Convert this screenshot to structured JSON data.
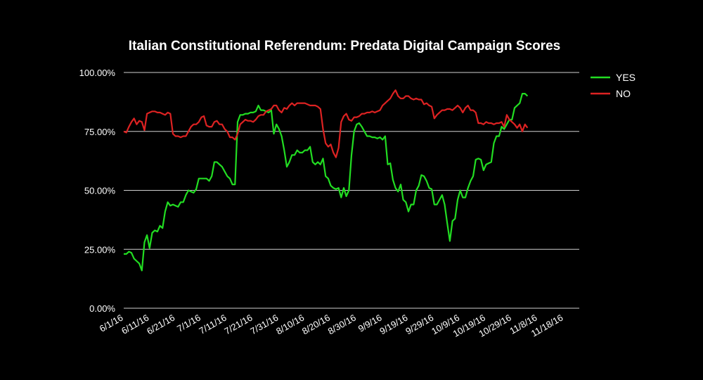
{
  "chart_data": {
    "type": "line",
    "title": "Italian Constitutional Referendum: Predata Digital Campaign Scores",
    "xlabel": "",
    "ylabel": "",
    "ylim": [
      0,
      100
    ],
    "y_ticks": [
      "0.00%",
      "25.00%",
      "50.00%",
      "75.00%",
      "100.00%"
    ],
    "y_tick_values": [
      0,
      25,
      50,
      75,
      100
    ],
    "grid": true,
    "legend_position": "right",
    "x_tick_labels": [
      "6/1/16",
      "6/11/16",
      "6/21/16",
      "7/1/16",
      "7/11/16",
      "7/21/16",
      "7/31/16",
      "8/10/16",
      "8/20/16",
      "8/30/16",
      "9/9/16",
      "9/19/16",
      "9/29/16",
      "10/9/16",
      "10/19/16",
      "10/29/16",
      "11/8/16",
      "11/18/16"
    ],
    "x_tick_days": [
      0,
      10,
      20,
      30,
      40,
      50,
      60,
      70,
      80,
      90,
      100,
      110,
      120,
      130,
      140,
      150,
      160,
      170
    ],
    "x_day_range": [
      0,
      176
    ],
    "series": [
      {
        "name": "YES",
        "color": "#22dd22",
        "points": [
          [
            0,
            23
          ],
          [
            1,
            23
          ],
          [
            2,
            24
          ],
          [
            3,
            23.5
          ],
          [
            4,
            21
          ],
          [
            5,
            20
          ],
          [
            6,
            19
          ],
          [
            7,
            16
          ],
          [
            8,
            28
          ],
          [
            9,
            31
          ],
          [
            10,
            25.5
          ],
          [
            11,
            32
          ],
          [
            12,
            33
          ],
          [
            13,
            32.5
          ],
          [
            14,
            35
          ],
          [
            15,
            34
          ],
          [
            16,
            41
          ],
          [
            17,
            45
          ],
          [
            18,
            43.5
          ],
          [
            19,
            44
          ],
          [
            20,
            43.5
          ],
          [
            21,
            43
          ],
          [
            22,
            45
          ],
          [
            23,
            45
          ],
          [
            24,
            48
          ],
          [
            25,
            50
          ],
          [
            26,
            49.5
          ],
          [
            27,
            49
          ],
          [
            28,
            50.5
          ],
          [
            29,
            55
          ],
          [
            30,
            55
          ],
          [
            31,
            55
          ],
          [
            32,
            55
          ],
          [
            33,
            54
          ],
          [
            34,
            56
          ],
          [
            35,
            62
          ],
          [
            36,
            62
          ],
          [
            37,
            61
          ],
          [
            38,
            60
          ],
          [
            39,
            58
          ],
          [
            40,
            56
          ],
          [
            41,
            55
          ],
          [
            42,
            52.5
          ],
          [
            43,
            52.5
          ],
          [
            44,
            79
          ],
          [
            45,
            82
          ],
          [
            46,
            82
          ],
          [
            47,
            82.5
          ],
          [
            48,
            82.5
          ],
          [
            49,
            83
          ],
          [
            50,
            83
          ],
          [
            51,
            83.5
          ],
          [
            52,
            86
          ],
          [
            53,
            84
          ],
          [
            54,
            84
          ],
          [
            55,
            83.5
          ],
          [
            56,
            83
          ],
          [
            57,
            84
          ],
          [
            58,
            74
          ],
          [
            59,
            78
          ],
          [
            60,
            76
          ],
          [
            61,
            73
          ],
          [
            62,
            67
          ],
          [
            63,
            60
          ],
          [
            64,
            62
          ],
          [
            65,
            65
          ],
          [
            66,
            65
          ],
          [
            67,
            67
          ],
          [
            68,
            66
          ],
          [
            69,
            66
          ],
          [
            70,
            67
          ],
          [
            71,
            67
          ],
          [
            72,
            68.5
          ],
          [
            73,
            62
          ],
          [
            74,
            61
          ],
          [
            75,
            62
          ],
          [
            76,
            61
          ],
          [
            77,
            63.5
          ],
          [
            78,
            56
          ],
          [
            79,
            55
          ],
          [
            80,
            52
          ],
          [
            81,
            51
          ],
          [
            82,
            50.5
          ],
          [
            83,
            51
          ],
          [
            84,
            47
          ],
          [
            85,
            51
          ],
          [
            86,
            47.5
          ],
          [
            87,
            50
          ],
          [
            88,
            65
          ],
          [
            89,
            75
          ],
          [
            90,
            78
          ],
          [
            91,
            78.5
          ],
          [
            92,
            77
          ],
          [
            93,
            75
          ],
          [
            94,
            73
          ],
          [
            95,
            73
          ],
          [
            96,
            72.5
          ],
          [
            97,
            72.5
          ],
          [
            98,
            72
          ],
          [
            99,
            72.5
          ],
          [
            100,
            71.5
          ],
          [
            101,
            73
          ],
          [
            102,
            61
          ],
          [
            103,
            61.5
          ],
          [
            104,
            54.5
          ],
          [
            105,
            51
          ],
          [
            106,
            49.5
          ],
          [
            107,
            52.5
          ],
          [
            108,
            46
          ],
          [
            109,
            45
          ],
          [
            110,
            41
          ],
          [
            111,
            44
          ],
          [
            112,
            44
          ],
          [
            113,
            50
          ],
          [
            114,
            52
          ],
          [
            115,
            56.5
          ],
          [
            116,
            56
          ],
          [
            117,
            54
          ],
          [
            118,
            51
          ],
          [
            119,
            50.5
          ],
          [
            120,
            44
          ],
          [
            121,
            44
          ],
          [
            122,
            46
          ],
          [
            123,
            48
          ],
          [
            124,
            44
          ],
          [
            125,
            36
          ],
          [
            126,
            28.5
          ],
          [
            127,
            37
          ],
          [
            128,
            38
          ],
          [
            129,
            46
          ],
          [
            130,
            50
          ],
          [
            131,
            47
          ],
          [
            132,
            47
          ],
          [
            133,
            51
          ],
          [
            134,
            54
          ],
          [
            135,
            56
          ],
          [
            136,
            63
          ],
          [
            137,
            63.5
          ],
          [
            138,
            63
          ],
          [
            139,
            58.5
          ],
          [
            140,
            61
          ],
          [
            141,
            61.5
          ],
          [
            142,
            62
          ],
          [
            143,
            70
          ],
          [
            144,
            73
          ],
          [
            145,
            73
          ],
          [
            146,
            77
          ],
          [
            147,
            76
          ],
          [
            148,
            78
          ],
          [
            149,
            80
          ],
          [
            150,
            80
          ],
          [
            151,
            85
          ],
          [
            152,
            86
          ],
          [
            153,
            87
          ],
          [
            154,
            91
          ],
          [
            155,
            91
          ],
          [
            156,
            90
          ]
        ]
      },
      {
        "name": "NO",
        "color": "#dd2222",
        "points": [
          [
            0,
            75
          ],
          [
            1,
            74.5
          ],
          [
            2,
            77
          ],
          [
            3,
            79
          ],
          [
            4,
            80.5
          ],
          [
            5,
            78
          ],
          [
            6,
            79.5
          ],
          [
            7,
            79
          ],
          [
            8,
            75.5
          ],
          [
            9,
            82.5
          ],
          [
            10,
            83
          ],
          [
            11,
            83.5
          ],
          [
            12,
            83.5
          ],
          [
            13,
            83
          ],
          [
            14,
            83
          ],
          [
            15,
            82.5
          ],
          [
            16,
            82
          ],
          [
            17,
            83
          ],
          [
            18,
            82.5
          ],
          [
            19,
            74
          ],
          [
            20,
            73
          ],
          [
            21,
            73
          ],
          [
            22,
            72.5
          ],
          [
            23,
            73
          ],
          [
            24,
            73
          ],
          [
            25,
            75
          ],
          [
            26,
            77
          ],
          [
            27,
            78
          ],
          [
            28,
            78
          ],
          [
            29,
            79
          ],
          [
            30,
            81
          ],
          [
            31,
            81.5
          ],
          [
            32,
            77.5
          ],
          [
            33,
            77
          ],
          [
            34,
            77
          ],
          [
            35,
            79
          ],
          [
            36,
            79.5
          ],
          [
            37,
            78
          ],
          [
            38,
            78
          ],
          [
            39,
            76
          ],
          [
            40,
            75
          ],
          [
            41,
            72.5
          ],
          [
            42,
            72.5
          ],
          [
            43,
            71.5
          ],
          [
            44,
            74
          ],
          [
            45,
            78
          ],
          [
            46,
            79
          ],
          [
            47,
            80
          ],
          [
            48,
            79.5
          ],
          [
            49,
            79.5
          ],
          [
            50,
            79
          ],
          [
            51,
            80
          ],
          [
            52,
            81.5
          ],
          [
            53,
            82
          ],
          [
            54,
            82
          ],
          [
            55,
            83.5
          ],
          [
            56,
            84
          ],
          [
            57,
            84.5
          ],
          [
            58,
            86
          ],
          [
            59,
            86
          ],
          [
            60,
            84
          ],
          [
            61,
            83
          ],
          [
            62,
            85
          ],
          [
            63,
            84.5
          ],
          [
            64,
            86
          ],
          [
            65,
            87
          ],
          [
            66,
            86
          ],
          [
            67,
            87
          ],
          [
            68,
            87
          ],
          [
            69,
            87
          ],
          [
            70,
            87
          ],
          [
            71,
            86.5
          ],
          [
            72,
            86
          ],
          [
            73,
            86
          ],
          [
            74,
            86
          ],
          [
            75,
            85.5
          ],
          [
            76,
            84.5
          ],
          [
            77,
            76
          ],
          [
            78,
            70
          ],
          [
            79,
            68.5
          ],
          [
            80,
            69.5
          ],
          [
            81,
            66
          ],
          [
            82,
            64
          ],
          [
            83,
            68
          ],
          [
            84,
            79
          ],
          [
            85,
            81.5
          ],
          [
            86,
            82.5
          ],
          [
            87,
            80
          ],
          [
            88,
            79.5
          ],
          [
            89,
            81
          ],
          [
            90,
            81
          ],
          [
            91,
            81.5
          ],
          [
            92,
            82.5
          ],
          [
            93,
            82.5
          ],
          [
            94,
            83
          ],
          [
            95,
            83
          ],
          [
            96,
            83.5
          ],
          [
            97,
            83
          ],
          [
            98,
            83.5
          ],
          [
            99,
            84
          ],
          [
            100,
            86
          ],
          [
            101,
            87
          ],
          [
            102,
            88
          ],
          [
            103,
            89
          ],
          [
            104,
            91
          ],
          [
            105,
            92.5
          ],
          [
            106,
            90
          ],
          [
            107,
            89
          ],
          [
            108,
            89
          ],
          [
            109,
            90
          ],
          [
            110,
            90
          ],
          [
            111,
            89
          ],
          [
            112,
            88.5
          ],
          [
            113,
            89
          ],
          [
            114,
            88.5
          ],
          [
            115,
            88.5
          ],
          [
            116,
            86.5
          ],
          [
            117,
            87
          ],
          [
            118,
            86
          ],
          [
            119,
            85.5
          ],
          [
            120,
            80.5
          ],
          [
            121,
            82
          ],
          [
            122,
            83
          ],
          [
            123,
            84
          ],
          [
            124,
            84
          ],
          [
            125,
            84.5
          ],
          [
            126,
            84.5
          ],
          [
            127,
            84
          ],
          [
            128,
            85
          ],
          [
            129,
            86
          ],
          [
            130,
            85
          ],
          [
            131,
            83
          ],
          [
            132,
            85
          ],
          [
            133,
            86
          ],
          [
            134,
            84
          ],
          [
            135,
            84
          ],
          [
            136,
            83
          ],
          [
            137,
            78.5
          ],
          [
            138,
            78.5
          ],
          [
            139,
            78
          ],
          [
            140,
            79
          ],
          [
            141,
            78.5
          ],
          [
            142,
            78.5
          ],
          [
            143,
            78
          ],
          [
            144,
            78.5
          ],
          [
            145,
            78.5
          ],
          [
            146,
            79
          ],
          [
            147,
            77
          ],
          [
            148,
            82
          ],
          [
            149,
            80
          ],
          [
            150,
            79
          ],
          [
            151,
            78
          ],
          [
            152,
            76.5
          ],
          [
            153,
            78
          ],
          [
            154,
            75
          ],
          [
            155,
            78
          ],
          [
            156,
            76.5
          ]
        ]
      }
    ]
  }
}
